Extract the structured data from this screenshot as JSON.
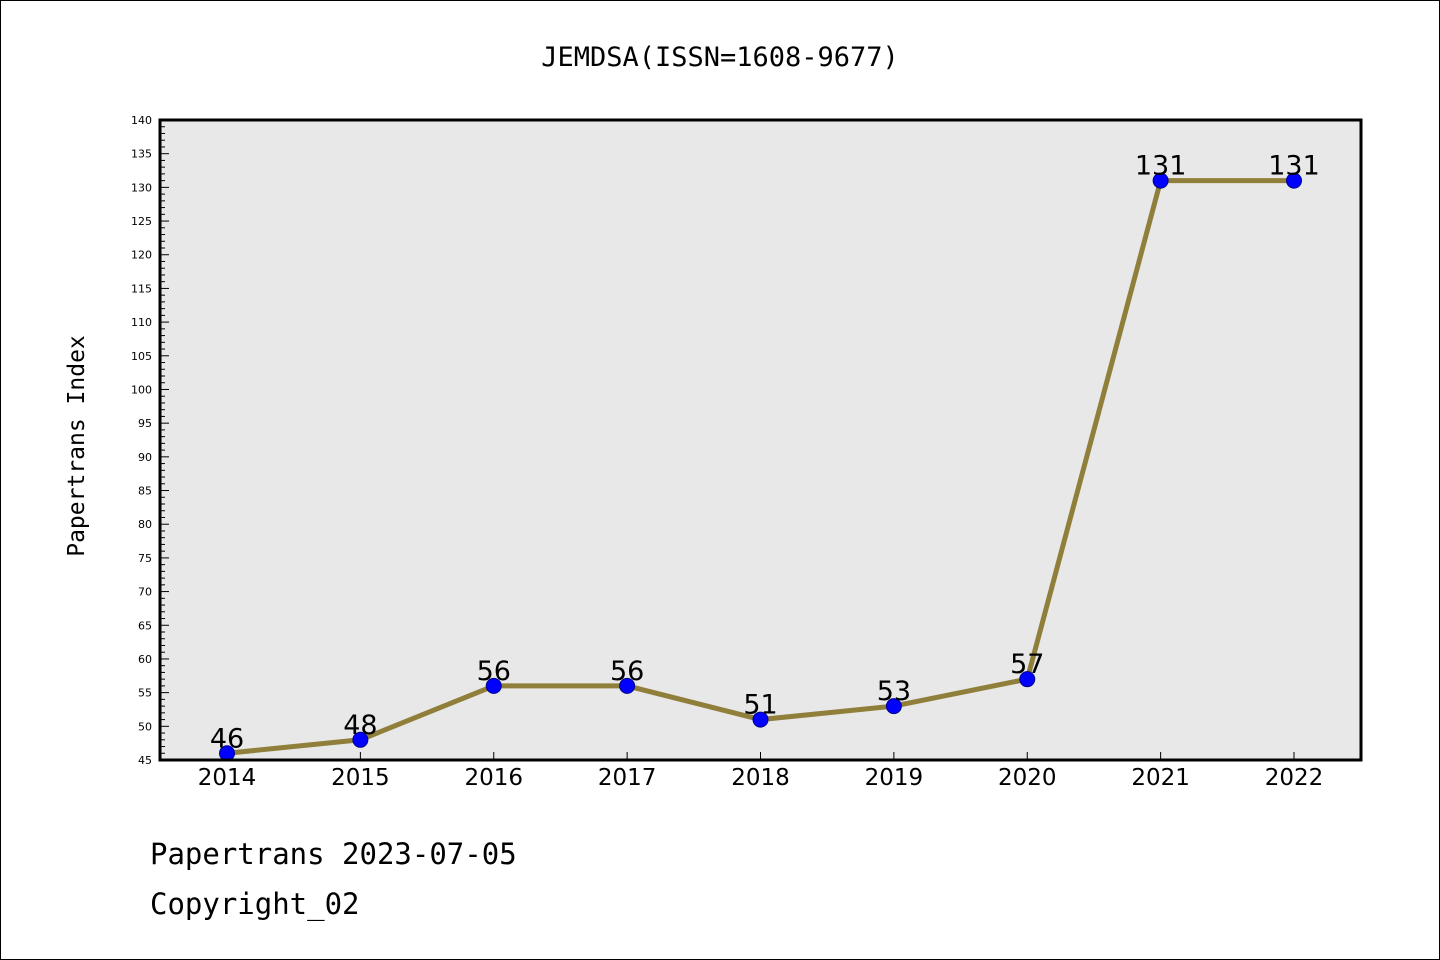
{
  "chart_data": {
    "type": "line",
    "title": "JEMDSA(ISSN=1608-9677)",
    "xlabel": "",
    "ylabel": "Papertrans Index",
    "categories": [
      "2014",
      "2015",
      "2016",
      "2017",
      "2018",
      "2019",
      "2020",
      "2021",
      "2022"
    ],
    "series": [
      {
        "values": [
          46,
          48,
          56,
          56,
          51,
          53,
          57,
          131,
          131
        ]
      }
    ],
    "ylim": [
      45,
      140
    ],
    "ytick_step": 5,
    "grid": false,
    "legend": "none",
    "colors": {
      "line": "#8f7f3a",
      "marker": "#0000ff",
      "plot_background": "#e8e8e8"
    }
  },
  "footer": {
    "line1": "Papertrans 2023-07-05",
    "line2": "Copyright_02"
  }
}
